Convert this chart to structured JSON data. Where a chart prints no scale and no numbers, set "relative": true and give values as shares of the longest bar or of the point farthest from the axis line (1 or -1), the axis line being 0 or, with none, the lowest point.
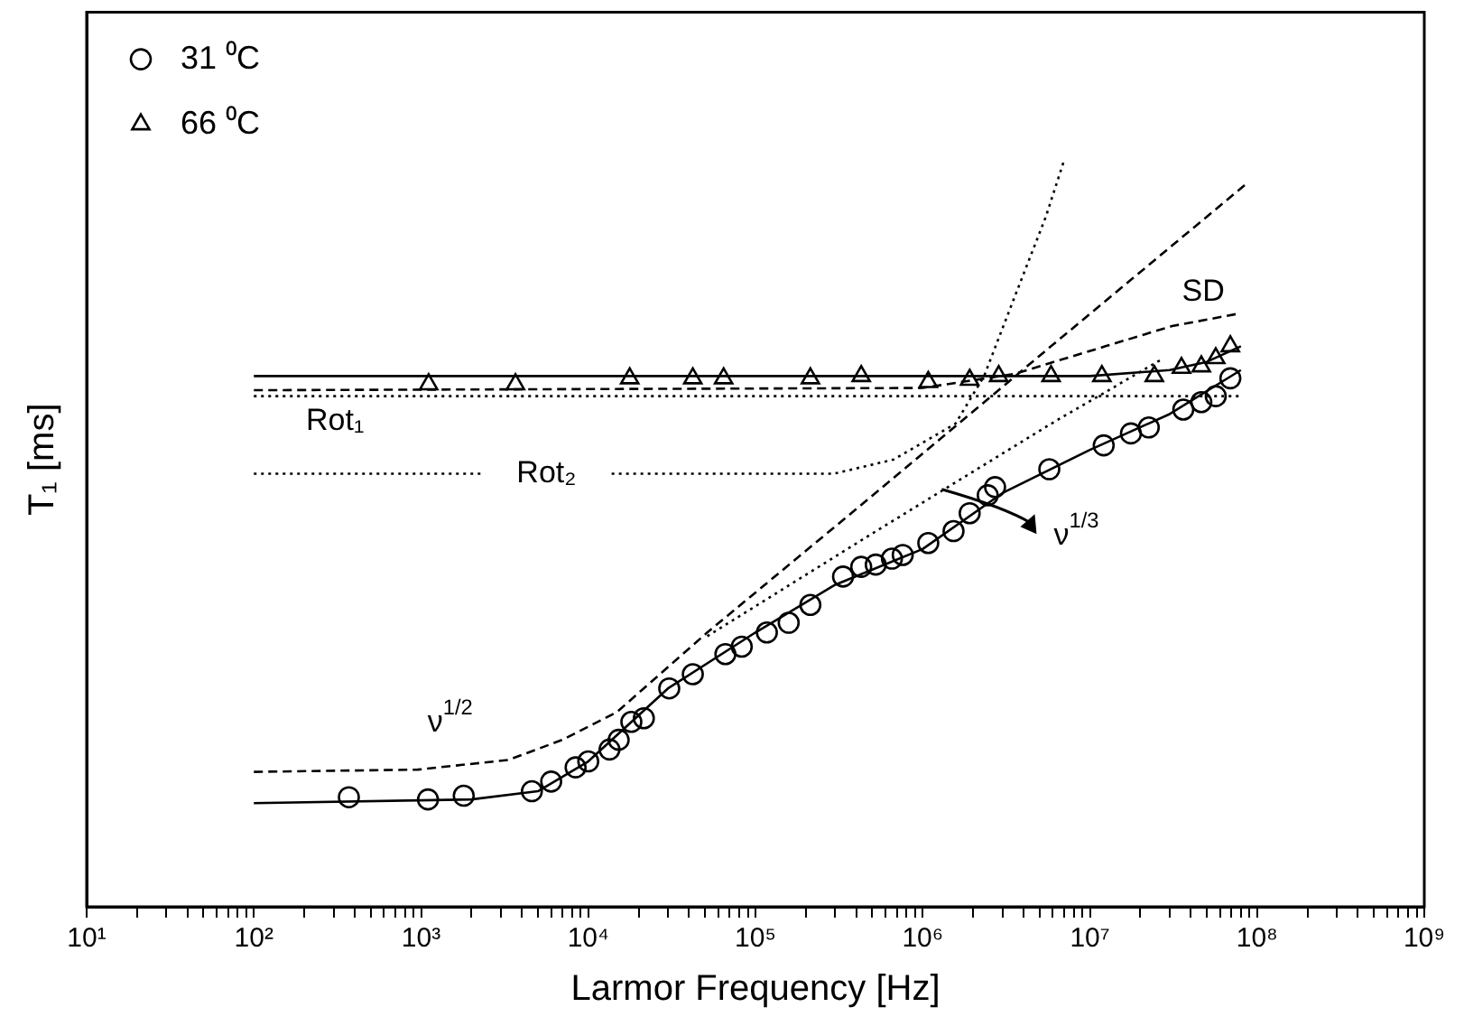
{
  "chart_data": {
    "type": "scatter",
    "xlabel": "Larmor Frequency [Hz]",
    "ylabel": "T₁ [ms]",
    "log": "x",
    "relative": true,
    "grid": false,
    "legend": "top left",
    "xlim": [
      10,
      1000000000
    ],
    "xticks": [
      {
        "value": 10,
        "label": "10¹"
      },
      {
        "value": 20,
        "label": null
      },
      {
        "value": 30,
        "label": null
      },
      {
        "value": 40,
        "label": null
      },
      {
        "value": 50,
        "label": null
      },
      {
        "value": 60,
        "label": null
      },
      {
        "value": 70,
        "label": null
      },
      {
        "value": 80,
        "label": null
      },
      {
        "value": 90,
        "label": null
      },
      {
        "value": 100,
        "label": "10²"
      },
      {
        "value": 200,
        "label": null
      },
      {
        "value": 300,
        "label": null
      },
      {
        "value": 400,
        "label": null
      },
      {
        "value": 500,
        "label": null
      },
      {
        "value": 600,
        "label": null
      },
      {
        "value": 700,
        "label": null
      },
      {
        "value": 800,
        "label": null
      },
      {
        "value": 900,
        "label": null
      },
      {
        "value": 1000,
        "label": "10³"
      },
      {
        "value": 2000,
        "label": null
      },
      {
        "value": 3000,
        "label": null
      },
      {
        "value": 4000,
        "label": null
      },
      {
        "value": 5000,
        "label": null
      },
      {
        "value": 6000,
        "label": null
      },
      {
        "value": 7000,
        "label": null
      },
      {
        "value": 8000,
        "label": null
      },
      {
        "value": 9000,
        "label": null
      },
      {
        "value": 10000,
        "label": "10⁴"
      },
      {
        "value": 20000,
        "label": null
      },
      {
        "value": 30000,
        "label": null
      },
      {
        "value": 40000,
        "label": null
      },
      {
        "value": 50000,
        "label": null
      },
      {
        "value": 60000,
        "label": null
      },
      {
        "value": 70000,
        "label": null
      },
      {
        "value": 80000,
        "label": null
      },
      {
        "value": 90000,
        "label": null
      },
      {
        "value": 100000,
        "label": "10⁵"
      },
      {
        "value": 200000,
        "label": null
      },
      {
        "value": 300000,
        "label": null
      },
      {
        "value": 400000,
        "label": null
      },
      {
        "value": 500000,
        "label": null
      },
      {
        "value": 600000,
        "label": null
      },
      {
        "value": 700000,
        "label": null
      },
      {
        "value": 800000,
        "label": null
      },
      {
        "value": 900000,
        "label": null
      },
      {
        "value": 1000000,
        "label": "10⁶"
      },
      {
        "value": 2000000,
        "label": null
      },
      {
        "value": 3000000,
        "label": null
      },
      {
        "value": 4000000,
        "label": null
      },
      {
        "value": 5000000,
        "label": null
      },
      {
        "value": 6000000,
        "label": null
      },
      {
        "value": 7000000,
        "label": null
      },
      {
        "value": 8000000,
        "label": null
      },
      {
        "value": 9000000,
        "label": null
      },
      {
        "value": 10000000,
        "label": "10⁷"
      },
      {
        "value": 20000000,
        "label": null
      },
      {
        "value": 30000000,
        "label": null
      },
      {
        "value": 40000000,
        "label": null
      },
      {
        "value": 50000000,
        "label": null
      },
      {
        "value": 60000000,
        "label": null
      },
      {
        "value": 70000000,
        "label": null
      },
      {
        "value": 80000000,
        "label": null
      },
      {
        "value": 90000000,
        "label": null
      },
      {
        "value": 100000000,
        "label": "10⁸"
      },
      {
        "value": 200000000,
        "label": null
      },
      {
        "value": 300000000,
        "label": null
      },
      {
        "value": 400000000,
        "label": null
      },
      {
        "value": 500000000,
        "label": null
      },
      {
        "value": 600000000,
        "label": null
      },
      {
        "value": 700000000,
        "label": null
      },
      {
        "value": 800000000,
        "label": null
      },
      {
        "value": 900000000,
        "label": null
      },
      {
        "value": 1000000000,
        "label": "10⁹"
      }
    ],
    "series": [
      {
        "name": "31 ⁰C",
        "type": "scatter",
        "marker": "circle",
        "color": "#000000",
        "x": [
          370,
          1100,
          1800,
          4600,
          6000,
          8400,
          10000,
          13400,
          15200,
          18100,
          21500,
          30500,
          42200,
          66100,
          82800,
          117000,
          158000,
          213000,
          334000,
          429000,
          524000,
          655000,
          760000,
          1080000,
          1530000,
          1910000,
          2450000,
          2710000,
          5720000,
          12100000,
          17600000,
          22500000,
          36200000,
          46400000,
          56600000,
          69200000
        ],
        "values": [
          0.147,
          0.144,
          0.149,
          0.155,
          0.168,
          0.187,
          0.195,
          0.211,
          0.224,
          0.248,
          0.253,
          0.293,
          0.312,
          0.339,
          0.349,
          0.368,
          0.381,
          0.405,
          0.443,
          0.456,
          0.459,
          0.467,
          0.472,
          0.488,
          0.504,
          0.528,
          0.552,
          0.563,
          0.587,
          0.619,
          0.635,
          0.643,
          0.667,
          0.677,
          0.685,
          0.709
        ]
      },
      {
        "name": "66 ⁰C",
        "type": "scatter",
        "marker": "triangle",
        "color": "#000000",
        "x": [
          1110,
          3670,
          17700,
          42200,
          64500,
          213000,
          429000,
          1080000,
          1910000,
          2850000,
          5860000,
          11800000,
          24300000,
          35300000,
          46400000,
          56600000,
          69200000
        ],
        "values": [
          0.701,
          0.701,
          0.709,
          0.709,
          0.709,
          0.709,
          0.712,
          0.704,
          0.707,
          0.712,
          0.712,
          0.712,
          0.712,
          0.723,
          0.725,
          0.736,
          0.752
        ]
      },
      {
        "type": "line",
        "line_style": "solid",
        "color": "#000000",
        "x": [
          100,
          10000000,
          30000000,
          50000000,
          80000000
        ],
        "values": [
          0.712,
          0.712,
          0.72,
          0.731,
          0.752
        ]
      },
      {
        "type": "line",
        "line_style": "solid",
        "color": "#000000",
        "x": [
          100,
          2000,
          5000,
          10000,
          30000,
          100000,
          300000,
          1000000,
          3000000,
          10000000,
          30000000,
          80000000
        ],
        "values": [
          0.139,
          0.144,
          0.155,
          0.195,
          0.293,
          0.368,
          0.432,
          0.48,
          0.555,
          0.613,
          0.661,
          0.72
        ]
      },
      {
        "name": "ν$^{1/2}$",
        "type": "line",
        "line_style": "dashed",
        "color": "#000000",
        "x": [
          100,
          955,
          3330,
          7010,
          14800,
          51500,
          485000,
          5860000,
          84300000
        ],
        "values": [
          0.181,
          0.184,
          0.197,
          0.224,
          0.261,
          0.368,
          0.549,
          0.752,
          0.968
        ]
      },
      {
        "name": "SD",
        "type": "line",
        "line_style": "dashed",
        "color": "#000000",
        "x": [
          100,
          1000000,
          3560000,
          12400000,
          31000000,
          74500000
        ],
        "values": [
          0.693,
          0.696,
          0.715,
          0.752,
          0.779,
          0.795
        ]
      },
      {
        "name": "Rot₁",
        "type": "line",
        "line_style": "dotted",
        "color": "#000000",
        "x": [
          100,
          80000000
        ],
        "values": [
          0.685,
          0.685
        ]
      },
      {
        "name": "Rot₂",
        "type": "line",
        "line_style": "dotted",
        "color": "#000000",
        "x": [
          100,
          2290,
          5470,
          13800,
          295000,
          671000,
          1570000,
          2330000,
          3560000,
          5440000,
          6980000
        ],
        "values": [
          0.581,
          0.581,
          null,
          0.581,
          0.581,
          0.6,
          0.648,
          0.712,
          0.819,
          0.925,
          1
        ]
      },
      {
        "name": "ν$^{1/3}$",
        "type": "line",
        "line_style": "dotted",
        "color": "#000000",
        "x": [
          51500,
          485000,
          5860000,
          26200000
        ],
        "values": [
          0.363,
          0.499,
          0.648,
          0.733
        ]
      }
    ]
  }
}
